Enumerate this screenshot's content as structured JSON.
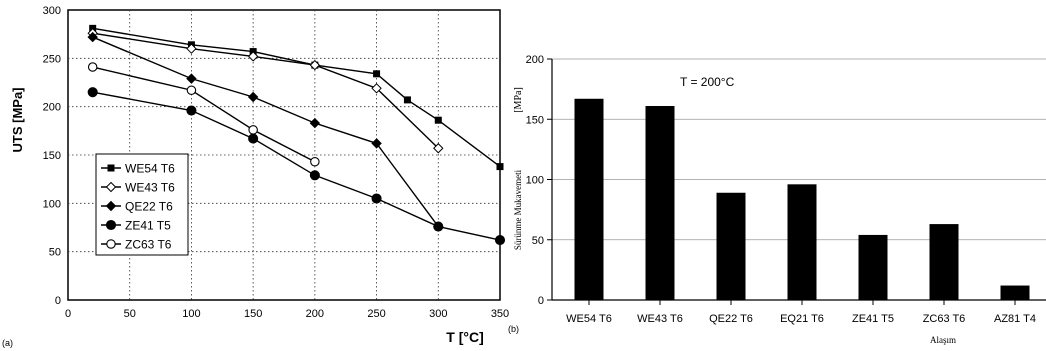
{
  "chart_data": [
    {
      "type": "line",
      "panel_label": "(a)",
      "ylabel": "UTS [MPa]",
      "xlabel": "T [°C]",
      "xlim": [
        0,
        350
      ],
      "ylim": [
        0,
        300
      ],
      "xticks": [
        "0",
        "50",
        "100",
        "150",
        "200",
        "250",
        "300",
        "350"
      ],
      "yticks": [
        "0",
        "50",
        "100",
        "150",
        "200",
        "250",
        "300"
      ],
      "grid": "dotted",
      "legend_position": "bottom-left",
      "series": [
        {
          "name": "WE54 T6",
          "marker": "square-filled",
          "x": [
            20,
            100,
            150,
            200,
            250,
            275,
            300,
            350
          ],
          "y": [
            281,
            264,
            257,
            243,
            234,
            207,
            186,
            138
          ]
        },
        {
          "name": "WE43 T6",
          "marker": "diamond-open",
          "x": [
            20,
            100,
            150,
            200,
            250,
            300
          ],
          "y": [
            276,
            260,
            252,
            243,
            219,
            157
          ]
        },
        {
          "name": "QE22 T6",
          "marker": "diamond-filled",
          "x": [
            20,
            100,
            150,
            200,
            250,
            300
          ],
          "y": [
            272,
            229,
            210,
            183,
            162,
            76
          ]
        },
        {
          "name": "ZE41 T5",
          "marker": "circle-filled",
          "x": [
            20,
            100,
            150,
            200,
            250,
            300,
            350
          ],
          "y": [
            215,
            196,
            167,
            129,
            105,
            76,
            62
          ]
        },
        {
          "name": "ZC63 T6",
          "marker": "circle-open",
          "x": [
            20,
            100,
            150,
            200
          ],
          "y": [
            241,
            217,
            176,
            143
          ]
        }
      ]
    },
    {
      "type": "bar",
      "panel_label": "(b)",
      "ylabel": "Sürünme Mukavemeti",
      "yunit": "[MPa]",
      "xlabel": "Alaşım",
      "annotation": "T = 200°C",
      "ylim": [
        0,
        200
      ],
      "yticks": [
        "0",
        "50",
        "100",
        "150",
        "200"
      ],
      "grid": "horizontal",
      "categories": [
        "WE54 T6",
        "WE43 T6",
        "QE22 T6",
        "EQ21 T6",
        "ZE41 T5",
        "ZC63 T6",
        "AZ81 T4"
      ],
      "values": [
        167,
        161,
        89,
        96,
        54,
        63,
        12
      ]
    }
  ]
}
